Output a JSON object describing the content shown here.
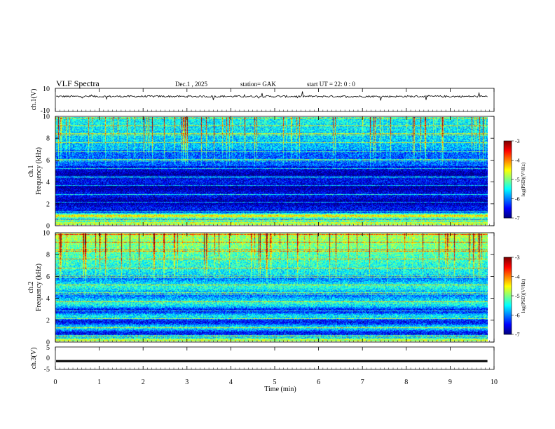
{
  "header": {
    "title": "VLF  Spectra",
    "date": "Dec.1  , 2025",
    "station": "station= GAK",
    "start_ut": "start  UT  =    22: 0   : 0"
  },
  "chart_data": [
    {
      "id": "ch1-waveform",
      "type": "line",
      "ylabel": "ch.1(V)",
      "ylim": [
        -10,
        10
      ],
      "yticks": [
        "10",
        "-10"
      ],
      "xlim": [
        0,
        10
      ],
      "baseline": 3,
      "color": "#000000"
    },
    {
      "id": "ch1-spectrogram",
      "type": "heatmap",
      "ylabel": "ch.1\nFrequency  (kHz)",
      "ylim": [
        0,
        10
      ],
      "yticks": [
        "10",
        "8",
        "6",
        "4",
        "2",
        "0"
      ],
      "xlim": [
        0,
        10
      ],
      "colorbar": {
        "label": "log(PSD)(V²/Hz)",
        "ticks": [
          "-3",
          "-4",
          "-5",
          "-6",
          "-7"
        ],
        "range": [
          -7,
          -3
        ]
      }
    },
    {
      "id": "ch2-spectrogram",
      "type": "heatmap",
      "ylabel": "ch.2\nFrequency  (kHz)",
      "ylim": [
        0,
        10
      ],
      "yticks": [
        "10",
        "8",
        "6",
        "4",
        "2",
        "0"
      ],
      "xlim": [
        0,
        10
      ],
      "colorbar": {
        "label": "log(PSD)(V²/Hz)",
        "ticks": [
          "-3",
          "-4",
          "-5",
          "-6",
          "-7"
        ],
        "range": [
          -7,
          -3
        ]
      }
    },
    {
      "id": "ch3-waveform",
      "type": "line",
      "ylabel": "ch.3(V)",
      "ylim": [
        -5,
        5
      ],
      "yticks": [
        "5",
        "0",
        "-5"
      ],
      "xlim": [
        0,
        10
      ],
      "baseline": -1.3,
      "color": "#000000"
    }
  ],
  "xaxis": {
    "label": "Time  (min)",
    "ticks": [
      "0",
      "1",
      "2",
      "3",
      "4",
      "5",
      "6",
      "7",
      "8",
      "9",
      "10"
    ],
    "data_end_min": 9.85
  }
}
